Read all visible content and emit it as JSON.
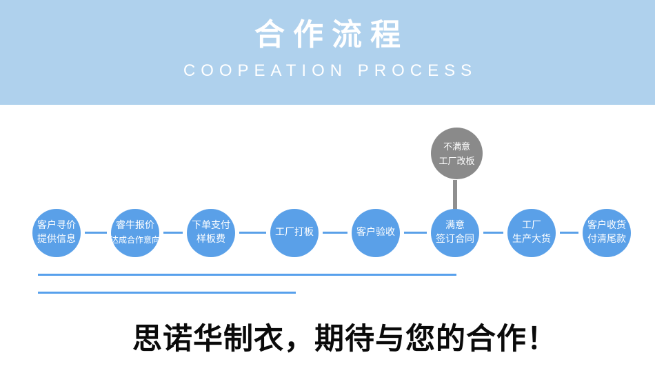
{
  "header": {
    "title": "合作流程",
    "subtitle": "COOPEATION PROCESS",
    "band_color": "#afd1ed",
    "title_color": "#ffffff",
    "subtitle_color": "#ffffff"
  },
  "flow": {
    "node_color": "#5aa0e8",
    "node_text_color": "#ffffff",
    "connector_color": "#5aa0e8",
    "nodes": [
      {
        "lines": [
          "客户寻价",
          "提供信息"
        ]
      },
      {
        "lines": [
          "睿牛报价",
          "达成合作意向"
        ]
      },
      {
        "lines": [
          "下单支付",
          "样板费"
        ]
      },
      {
        "lines": [
          "工厂打板"
        ]
      },
      {
        "lines": [
          "客户验收"
        ]
      },
      {
        "lines": [
          "满意",
          "签订合同"
        ]
      },
      {
        "lines": [
          "工厂",
          "生产大货"
        ]
      },
      {
        "lines": [
          "客户收货",
          "付清尾款"
        ]
      }
    ],
    "alt_node": {
      "lines": [
        "不满意",
        "工厂改板"
      ],
      "color": "#8a8a8a",
      "bar_color": "#8f8f8f"
    }
  },
  "dividers": {
    "color": "#57a0ec"
  },
  "slogan": {
    "text": "思诺华制衣，期待与您的合作！",
    "color": "#0a0a0a"
  }
}
